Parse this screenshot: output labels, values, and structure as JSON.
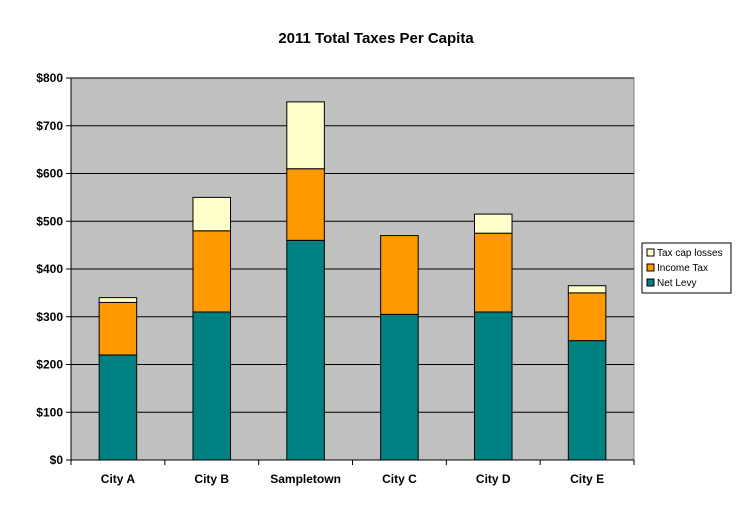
{
  "chart_data": {
    "type": "bar",
    "stacked": true,
    "title": "2011 Total Taxes Per Capita",
    "xlabel": "",
    "ylabel": "",
    "categories": [
      "City A",
      "City B",
      "Sampletown",
      "City C",
      "City D",
      "City E"
    ],
    "series": [
      {
        "name": "Net Levy",
        "color": "#008080",
        "values": [
          220,
          310,
          460,
          305,
          310,
          250
        ]
      },
      {
        "name": "Income Tax",
        "color": "#ff9900",
        "values": [
          110,
          170,
          150,
          165,
          165,
          100
        ]
      },
      {
        "name": "Tax cap losses",
        "color": "#ffffcc",
        "values": [
          10,
          70,
          140,
          0,
          40,
          15
        ]
      }
    ],
    "ylim": [
      0,
      800
    ],
    "yticks": [
      0,
      100,
      200,
      300,
      400,
      500,
      600,
      700,
      800
    ],
    "ytick_labels": [
      "$0",
      "$100",
      "$200",
      "$300",
      "$400",
      "$500",
      "$600",
      "$700",
      "$800"
    ],
    "plot_background": "#c0c0c0",
    "grid": true,
    "legend_position": "right",
    "legend_order": [
      "Tax cap losses",
      "Income Tax",
      "Net Levy"
    ]
  }
}
